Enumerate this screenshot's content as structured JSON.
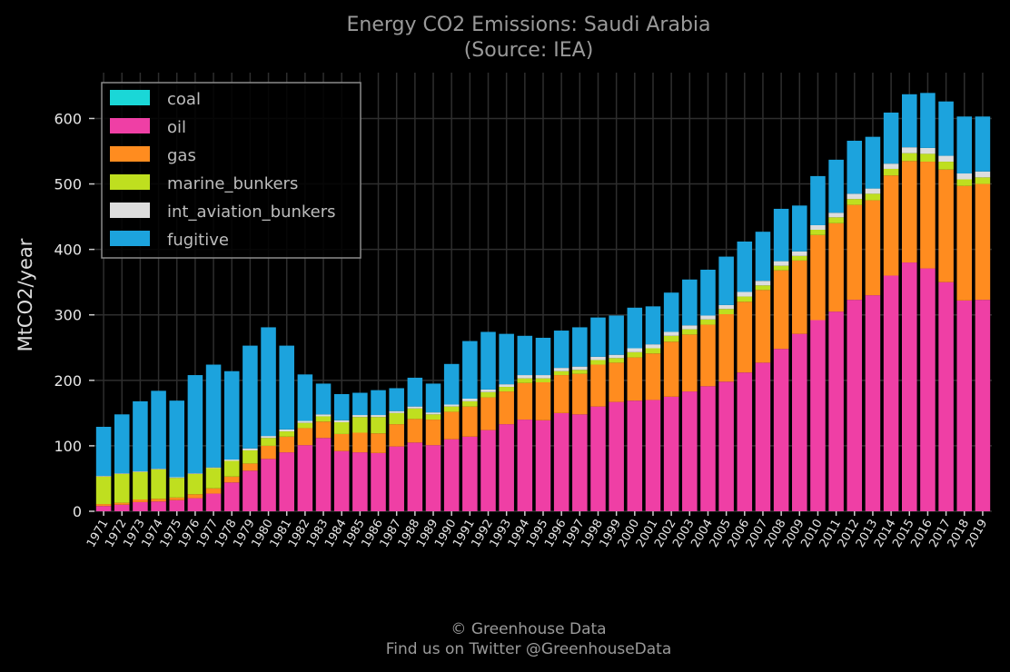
{
  "chart_data": {
    "type": "bar",
    "stacked": true,
    "title": "Energy CO2 Emissions: Saudi Arabia",
    "subtitle": "(Source: IEA)",
    "xlabel": "",
    "ylabel": "MtCO2/year",
    "ylim": [
      0,
      670
    ],
    "yticks": [
      "0",
      "100",
      "200",
      "300",
      "400",
      "500",
      "600"
    ],
    "grid": true,
    "legend_position": "top-left",
    "categories": [
      "1971",
      "1972",
      "1973",
      "1974",
      "1975",
      "1976",
      "1977",
      "1978",
      "1979",
      "1980",
      "1981",
      "1982",
      "1983",
      "1984",
      "1985",
      "1986",
      "1987",
      "1988",
      "1989",
      "1990",
      "1991",
      "1992",
      "1993",
      "1994",
      "1995",
      "1996",
      "1997",
      "1998",
      "1999",
      "2000",
      "2001",
      "2002",
      "2003",
      "2004",
      "2005",
      "2006",
      "2007",
      "2008",
      "2009",
      "2010",
      "2011",
      "2012",
      "2013",
      "2014",
      "2015",
      "2016",
      "2017",
      "2018",
      "2019"
    ],
    "series": [
      {
        "name": "coal",
        "color": "#1ad7d7",
        "values": [
          0,
          0,
          0,
          0,
          0,
          0,
          0,
          0,
          0,
          0,
          0,
          0,
          0,
          0,
          0,
          0,
          0,
          0,
          0,
          0,
          0,
          0,
          0,
          0,
          0,
          0,
          0,
          0,
          0,
          0,
          0,
          0,
          0,
          0,
          0,
          0,
          0,
          0,
          0,
          0,
          0,
          0,
          0,
          0,
          0,
          0,
          0,
          0,
          0
        ]
      },
      {
        "name": "oil",
        "color": "#ef3fa5",
        "values": [
          8,
          10,
          14,
          15,
          17,
          20,
          27,
          44,
          62,
          80,
          90,
          101,
          112,
          92,
          90,
          89,
          99,
          105,
          101,
          110,
          114,
          124,
          133,
          140,
          139,
          150,
          148,
          160,
          167,
          169,
          170,
          175,
          183,
          191,
          198,
          212,
          227,
          248,
          271,
          292,
          305,
          323,
          330,
          360,
          380,
          371,
          350,
          322,
          323
        ]
      },
      {
        "name": "gas",
        "color": "#ff8c1f",
        "values": [
          3,
          3,
          4,
          4,
          4,
          6,
          8,
          9,
          11,
          20,
          24,
          26,
          25,
          26,
          30,
          30,
          34,
          36,
          39,
          42,
          46,
          50,
          50,
          56,
          58,
          58,
          62,
          64,
          60,
          66,
          71,
          84,
          87,
          94,
          103,
          108,
          111,
          120,
          112,
          130,
          135,
          145,
          145,
          153,
          155,
          163,
          172,
          175,
          177
        ]
      },
      {
        "name": "marine_bunkers",
        "color": "#bfdf1f",
        "values": [
          42,
          44,
          42,
          45,
          30,
          31,
          31,
          24,
          20,
          12,
          8,
          8,
          8,
          18,
          24,
          25,
          17,
          16,
          8,
          8,
          8,
          8,
          7,
          7,
          6,
          6,
          6,
          7,
          7,
          8,
          8,
          9,
          8,
          8,
          8,
          8,
          7,
          7,
          7,
          8,
          9,
          9,
          10,
          10,
          12,
          12,
          12,
          10,
          10
        ]
      },
      {
        "name": "int_aviation_bunkers",
        "color": "#dddddd",
        "values": [
          1,
          1,
          1,
          1,
          1,
          1,
          1,
          2,
          3,
          3,
          3,
          3,
          3,
          3,
          3,
          3,
          3,
          3,
          3,
          3,
          4,
          4,
          4,
          5,
          5,
          5,
          5,
          5,
          5,
          6,
          6,
          6,
          6,
          6,
          6,
          7,
          7,
          7,
          7,
          7,
          7,
          8,
          8,
          8,
          9,
          9,
          9,
          9,
          9
        ]
      },
      {
        "name": "fugitive",
        "color": "#1ca3dd",
        "values": [
          75,
          90,
          107,
          119,
          117,
          150,
          157,
          135,
          157,
          166,
          128,
          71,
          47,
          40,
          34,
          38,
          35,
          44,
          44,
          62,
          88,
          88,
          77,
          60,
          57,
          57,
          60,
          60,
          60,
          62,
          58,
          60,
          70,
          70,
          74,
          77,
          75,
          80,
          70,
          75,
          81,
          81,
          79,
          78,
          81,
          84,
          83,
          87,
          84
        ]
      }
    ],
    "footer": [
      "© Greenhouse Data",
      "Find us on Twitter @GreenhouseData"
    ]
  }
}
